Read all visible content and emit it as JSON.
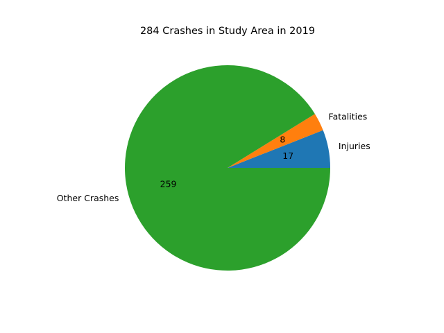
{
  "chart_data": {
    "type": "pie",
    "title": "284 Crashes in Study Area in 2019",
    "slices": [
      {
        "label": "Injuries",
        "value": 17,
        "value_label": "17",
        "color": "#1f77b4"
      },
      {
        "label": "Fatalities",
        "value": 8,
        "value_label": "8",
        "color": "#ff7f0e"
      },
      {
        "label": "Other Crashes",
        "value": 259,
        "value_label": "259",
        "color": "#2ca02c"
      }
    ],
    "start_angle_deg": 0,
    "direction": "counterclockwise"
  }
}
